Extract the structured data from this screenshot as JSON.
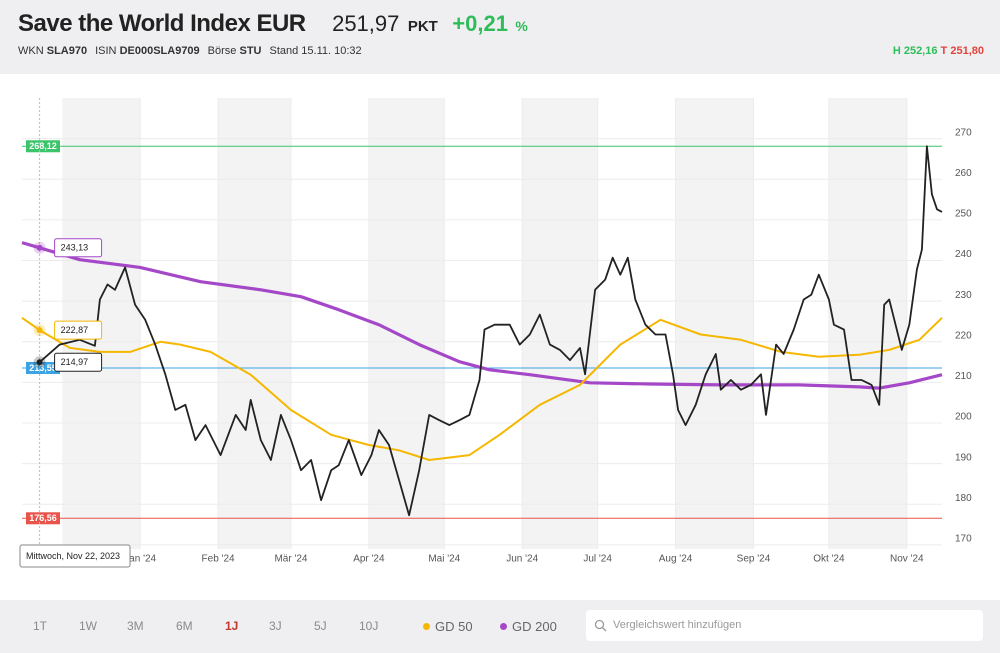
{
  "header": {
    "title": "Save the World Index EUR",
    "price": "251,97",
    "unit": "PKT",
    "change": "+0,21",
    "change_unit": "%",
    "meta": [
      {
        "label": "WKN",
        "value": "SLA970"
      },
      {
        "label": "ISIN",
        "value": "DE000SLA9709"
      },
      {
        "label": "Börse",
        "value": "STU"
      },
      {
        "label": "Stand",
        "value": "15.11. 10:32"
      }
    ],
    "high_label": "H",
    "high": "252,16",
    "low_label": "T",
    "low": "251,80"
  },
  "toolbar": {
    "ranges": [
      "1T",
      "1W",
      "3M",
      "6M",
      "1J",
      "3J",
      "5J",
      "10J"
    ],
    "active_range": 4,
    "search_placeholder": "Vergleichswert hinzufügen"
  },
  "chart_data": {
    "type": "line",
    "xlim": [
      "2023-11-15",
      "2024-11-15"
    ],
    "xticks": [
      {
        "value": "2024-01-01",
        "label": "Jan '24"
      },
      {
        "value": "2024-02-01",
        "label": "Feb '24"
      },
      {
        "value": "2024-03-01",
        "label": "Mär '24"
      },
      {
        "value": "2024-04-01",
        "label": "Apr '24"
      },
      {
        "value": "2024-05-01",
        "label": "Mai '24"
      },
      {
        "value": "2024-06-01",
        "label": "Jun '24"
      },
      {
        "value": "2024-07-01",
        "label": "Jul '24"
      },
      {
        "value": "2024-08-01",
        "label": "Aug '24"
      },
      {
        "value": "2024-09-01",
        "label": "Sep '24"
      },
      {
        "value": "2024-10-01",
        "label": "Okt '24"
      },
      {
        "value": "2024-11-01",
        "label": "Nov '24"
      }
    ],
    "ylim": [
      169,
      280
    ],
    "yticks": [
      170,
      180,
      190,
      200,
      210,
      220,
      230,
      240,
      250,
      260,
      270
    ],
    "grid": true,
    "series": [
      {
        "color": "#222222",
        "x": [
          "2023-11-22",
          "2023-11-30",
          "2023-12-08",
          "2023-12-14",
          "2023-12-16",
          "2023-12-19",
          "2023-12-22",
          "2023-12-26",
          "2023-12-30",
          "2024-01-03",
          "2024-01-07",
          "2024-01-11",
          "2024-01-15",
          "2024-01-19",
          "2024-01-23",
          "2024-01-27",
          "2024-02-02",
          "2024-02-08",
          "2024-02-12",
          "2024-02-14",
          "2024-02-18",
          "2024-02-22",
          "2024-02-26",
          "2024-03-01",
          "2024-03-05",
          "2024-03-09",
          "2024-03-13",
          "2024-03-17",
          "2024-03-20",
          "2024-03-24",
          "2024-03-29",
          "2024-04-02",
          "2024-04-05",
          "2024-04-09",
          "2024-04-13",
          "2024-04-17",
          "2024-04-21",
          "2024-04-25",
          "2024-04-29",
          "2024-05-03",
          "2024-05-07",
          "2024-05-11",
          "2024-05-15",
          "2024-05-17",
          "2024-05-21",
          "2024-05-27",
          "2024-05-31",
          "2024-06-04",
          "2024-06-08",
          "2024-06-12",
          "2024-06-16",
          "2024-06-20",
          "2024-06-24",
          "2024-06-26",
          "2024-06-30",
          "2024-07-04",
          "2024-07-07",
          "2024-07-10",
          "2024-07-13",
          "2024-07-16",
          "2024-07-20",
          "2024-07-24",
          "2024-07-28",
          "2024-07-31",
          "2024-08-02",
          "2024-08-05",
          "2024-08-09",
          "2024-08-13",
          "2024-08-17",
          "2024-08-19",
          "2024-08-23",
          "2024-08-27",
          "2024-08-31",
          "2024-09-04",
          "2024-09-06",
          "2024-09-10",
          "2024-09-13",
          "2024-09-17",
          "2024-09-21",
          "2024-09-24",
          "2024-09-27",
          "2024-10-01",
          "2024-10-03",
          "2024-10-07",
          "2024-10-10",
          "2024-10-14",
          "2024-10-18",
          "2024-10-21",
          "2024-10-23",
          "2024-10-25",
          "2024-10-28",
          "2024-10-30",
          "2024-11-02",
          "2024-11-05",
          "2024-11-07",
          "2024-11-09",
          "2024-11-11",
          "2024-11-13",
          "2024-11-15"
        ],
        "values": [
          214.97,
          219.3,
          220.5,
          219.0,
          230.4,
          234.1,
          232.8,
          238.3,
          229.1,
          225.4,
          219.3,
          212.0,
          203.2,
          204.5,
          195.8,
          199.5,
          192.1,
          202.0,
          198.3,
          205.7,
          195.8,
          190.9,
          202.0,
          195.8,
          188.4,
          190.9,
          181.0,
          188.4,
          189.6,
          195.8,
          187.2,
          192.1,
          198.3,
          194.6,
          186.0,
          177.3,
          188.4,
          202.0,
          200.7,
          199.5,
          200.7,
          202.0,
          210.6,
          223.0,
          224.2,
          224.2,
          219.3,
          221.8,
          226.7,
          219.3,
          218.0,
          215.5,
          218.5,
          212.0,
          232.8,
          235.3,
          240.7,
          236.5,
          240.7,
          230.4,
          224.2,
          221.8,
          221.8,
          212.0,
          203.2,
          199.5,
          204.5,
          212.0,
          217.0,
          208.2,
          210.6,
          208.2,
          209.4,
          212.0,
          202.0,
          219.3,
          217.0,
          223.0,
          230.4,
          231.6,
          236.5,
          230.4,
          224.2,
          223.0,
          210.6,
          210.6,
          209.4,
          204.5,
          229.1,
          230.4,
          223.0,
          218.0,
          224.2,
          237.8,
          242.7,
          268.12,
          256.3,
          252.6,
          251.97
        ]
      },
      {
        "name": "GD 50",
        "color": "#f5b700",
        "x": [
          "2023-11-15",
          "2023-11-22",
          "2023-12-04",
          "2023-12-16",
          "2023-12-28",
          "2024-01-09",
          "2024-01-17",
          "2024-01-29",
          "2024-02-14",
          "2024-03-01",
          "2024-03-17",
          "2024-04-01",
          "2024-04-13",
          "2024-04-25",
          "2024-05-11",
          "2024-05-23",
          "2024-06-08",
          "2024-06-24",
          "2024-07-10",
          "2024-07-26",
          "2024-08-11",
          "2024-08-27",
          "2024-09-12",
          "2024-09-27",
          "2024-10-13",
          "2024-10-25",
          "2024-11-06",
          "2024-11-15"
        ],
        "values": [
          225.9,
          222.87,
          218.5,
          217.5,
          217.5,
          220.0,
          219.3,
          217.5,
          211.9,
          203.2,
          197.1,
          194.6,
          193.3,
          190.9,
          192.1,
          197.1,
          204.5,
          209.4,
          219.3,
          225.4,
          221.8,
          220.5,
          217.5,
          216.3,
          216.8,
          218.0,
          220.5,
          225.9
        ]
      },
      {
        "name": "GD 200",
        "color": "#a548c8",
        "x": [
          "2023-11-15",
          "2023-11-22",
          "2023-12-08",
          "2024-01-01",
          "2024-01-25",
          "2024-02-18",
          "2024-03-05",
          "2024-03-20",
          "2024-04-05",
          "2024-04-21",
          "2024-05-07",
          "2024-05-19",
          "2024-06-04",
          "2024-06-28",
          "2024-07-22",
          "2024-08-19",
          "2024-09-19",
          "2024-10-13",
          "2024-10-21",
          "2024-11-02",
          "2024-11-15"
        ],
        "values": [
          244.4,
          243.13,
          240.2,
          238.3,
          234.8,
          232.8,
          231.1,
          227.9,
          224.2,
          219.3,
          215.1,
          213.1,
          211.9,
          209.9,
          209.6,
          209.4,
          209.4,
          208.9,
          208.6,
          209.9,
          211.9
        ]
      }
    ],
    "reference_lines": [
      {
        "value": 268.12,
        "label": "268,12",
        "color": "#3cc46a"
      },
      {
        "value": 213.55,
        "label": "213,55",
        "color": "#3aa3e3"
      },
      {
        "value": 176.56,
        "label": "176,56",
        "color": "#e8544a"
      }
    ],
    "crosshair": {
      "x": "2023-11-22",
      "label": "Mittwoch, Nov 22, 2023",
      "values": [
        214.97,
        222.87,
        243.13
      ],
      "value_labels": [
        "214,97",
        "222,87",
        "243,13"
      ]
    }
  }
}
